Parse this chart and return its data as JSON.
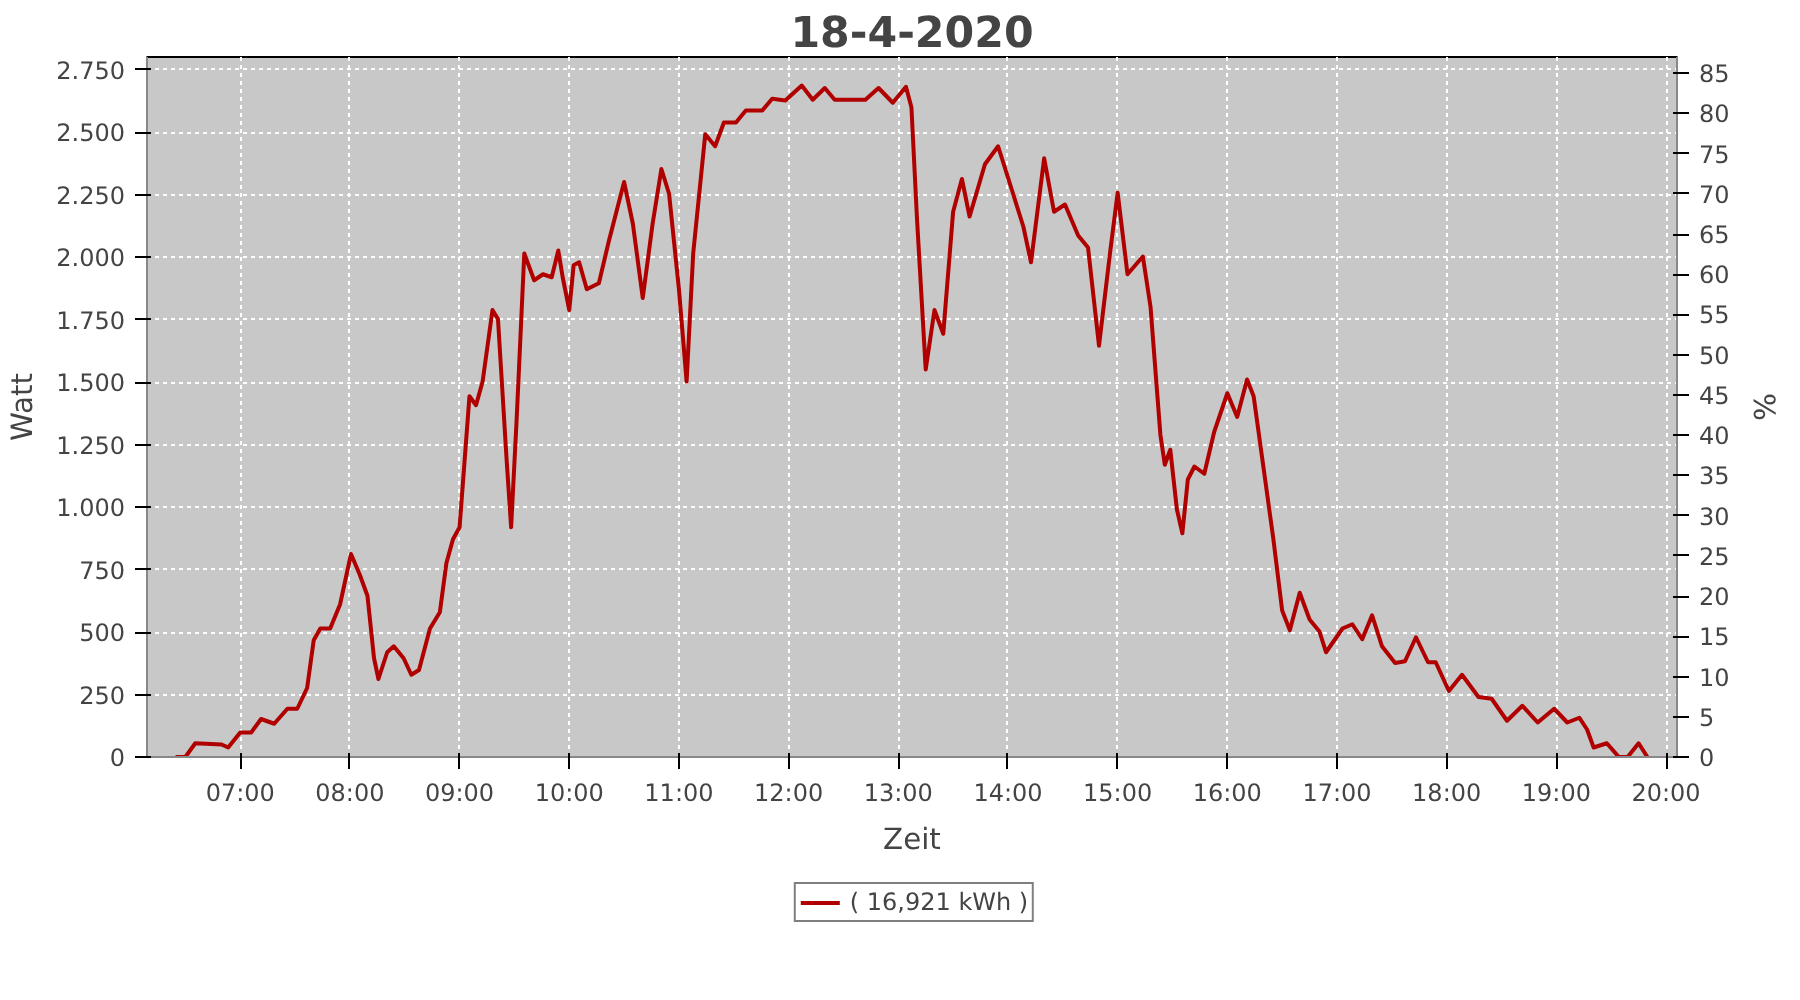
{
  "chart_data": {
    "type": "line",
    "title": "18-4-2020",
    "xlabel": "Zeit",
    "ylabel": "Watt",
    "y2label": "%",
    "xlim": [
      6.15,
      20.1
    ],
    "xticks": [
      {
        "value": 7,
        "label": "07:00"
      },
      {
        "value": 8,
        "label": "08:00"
      },
      {
        "value": 9,
        "label": "09:00"
      },
      {
        "value": 10,
        "label": "10:00"
      },
      {
        "value": 11,
        "label": "11:00"
      },
      {
        "value": 12,
        "label": "12:00"
      },
      {
        "value": 13,
        "label": "13:00"
      },
      {
        "value": 14,
        "label": "14:00"
      },
      {
        "value": 15,
        "label": "15:00"
      },
      {
        "value": 16,
        "label": "16:00"
      },
      {
        "value": 17,
        "label": "17:00"
      },
      {
        "value": 18,
        "label": "18:00"
      },
      {
        "value": 19,
        "label": "19:00"
      },
      {
        "value": 20,
        "label": "20:00"
      }
    ],
    "ylim": [
      0,
      2800
    ],
    "yticks": [
      0,
      250,
      500,
      750,
      {
        "value": 1000,
        "label": "1.000"
      },
      {
        "value": 1250,
        "label": "1.250"
      },
      {
        "value": 1500,
        "label": "1.500"
      },
      {
        "value": 1750,
        "label": "1.750"
      },
      {
        "value": 2000,
        "label": "2.000"
      },
      {
        "value": 2250,
        "label": "2.250"
      },
      {
        "value": 2500,
        "label": "2.500"
      },
      {
        "value": 2750,
        "label": "2.750"
      }
    ],
    "y2lim": [
      0,
      87
    ],
    "y2ticks": [
      0,
      5,
      10,
      15,
      20,
      25,
      30,
      35,
      40,
      45,
      50,
      55,
      60,
      65,
      70,
      75,
      80,
      85
    ],
    "grid": true,
    "legend": "bottom",
    "line_style": "solid",
    "marker": "none",
    "x": [
      6.41,
      6.5,
      6.59,
      6.83,
      6.89,
      7.0,
      7.1,
      7.19,
      7.31,
      7.43,
      7.52,
      7.61,
      7.67,
      7.73,
      7.82,
      7.91,
      8.01,
      8.09,
      8.16,
      8.22,
      8.26,
      8.34,
      8.4,
      8.49,
      8.56,
      8.63,
      8.73,
      8.82,
      8.88,
      8.94,
      9.0,
      9.09,
      9.15,
      9.21,
      9.3,
      9.35,
      9.39,
      9.43,
      9.47,
      9.52,
      9.59,
      9.68,
      9.76,
      9.84,
      9.9,
      9.94,
      10.0,
      10.04,
      10.09,
      10.16,
      10.27,
      10.36,
      10.5,
      10.58,
      10.67,
      10.76,
      10.84,
      10.91,
      11.0,
      11.07,
      11.13,
      11.24,
      11.33,
      11.41,
      11.52,
      11.61,
      11.76,
      11.85,
      11.97,
      12.12,
      12.22,
      12.33,
      12.42,
      12.7,
      12.82,
      12.95,
      13.07,
      13.12,
      13.17,
      13.25,
      13.33,
      13.41,
      13.5,
      13.58,
      13.65,
      13.79,
      13.91,
      14.03,
      14.14,
      14.21,
      14.33,
      14.42,
      14.52,
      14.64,
      14.73,
      14.83,
      14.93,
      15.0,
      15.09,
      15.23,
      15.3,
      15.39,
      15.43,
      15.48,
      15.54,
      15.59,
      15.64,
      15.7,
      15.79,
      15.88,
      16.0,
      16.09,
      16.18,
      16.24,
      16.33,
      16.42,
      16.5,
      16.57,
      16.66,
      16.75,
      16.84,
      16.9,
      17.05,
      17.14,
      17.23,
      17.32,
      17.41,
      17.53,
      17.62,
      17.72,
      17.83,
      17.9,
      18.02,
      18.14,
      18.29,
      18.41,
      18.55,
      18.69,
      18.83,
      18.98,
      19.1,
      19.21,
      19.28,
      19.34,
      19.46,
      19.57,
      19.65,
      19.75,
      19.83
    ],
    "series": [
      {
        "name": "( 16,921 kWh )",
        "color": "#b00000",
        "values": [
          0,
          0,
          55,
          50,
          38,
          98,
          98,
          152,
          133,
          193,
          193,
          276,
          467,
          514,
          514,
          610,
          812,
          729,
          645,
          395,
          312,
          419,
          443,
          395,
          329,
          348,
          514,
          579,
          776,
          871,
          919,
          1443,
          1407,
          1502,
          1788,
          1752,
          1467,
          1181,
          919,
          1348,
          2014,
          1907,
          1931,
          1919,
          2026,
          1919,
          1788,
          1967,
          1979,
          1871,
          1895,
          2062,
          2300,
          2133,
          1836,
          2133,
          2352,
          2253,
          1871,
          1502,
          2014,
          2491,
          2443,
          2538,
          2538,
          2586,
          2586,
          2633,
          2626,
          2686,
          2629,
          2676,
          2629,
          2629,
          2676,
          2617,
          2681,
          2598,
          2157,
          1550,
          1788,
          1693,
          2181,
          2312,
          2162,
          2371,
          2443,
          2276,
          2122,
          1979,
          2395,
          2181,
          2210,
          2086,
          2038,
          1645,
          2014,
          2257,
          1931,
          2002,
          1800,
          1288,
          1169,
          1229,
          991,
          895,
          1110,
          1162,
          1133,
          1300,
          1455,
          1360,
          1510,
          1443,
          1157,
          871,
          586,
          507,
          657,
          550,
          502,
          419,
          514,
          531,
          471,
          567,
          443,
          376,
          383,
          479,
          379,
          379,
          264,
          329,
          240,
          233,
          145,
          205,
          138,
          193,
          138,
          157,
          110,
          38,
          55,
          0,
          0,
          55,
          0
        ]
      }
    ]
  }
}
